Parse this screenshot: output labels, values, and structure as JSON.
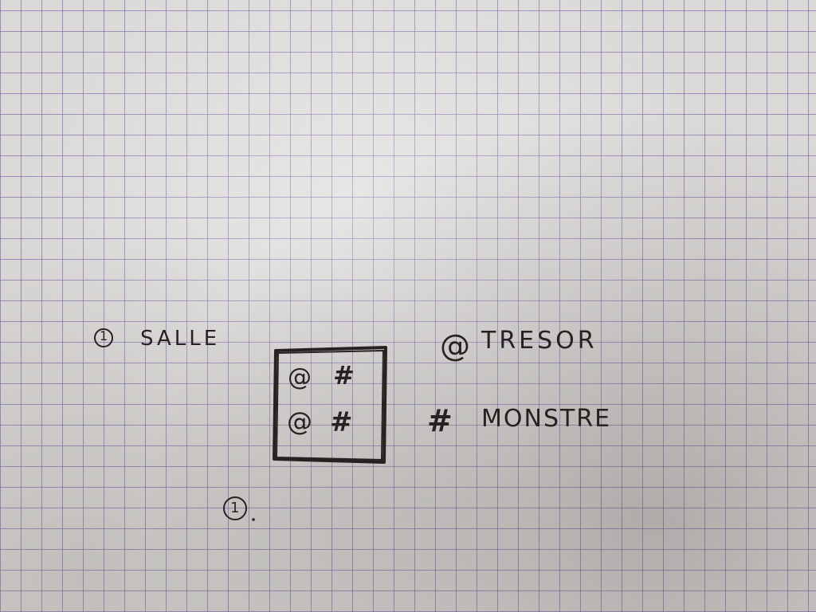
{
  "legend": {
    "start": {
      "marker": "1",
      "label": "SALLE"
    },
    "treasure": {
      "symbol": "@",
      "label": "TRESOR"
    },
    "monster": {
      "symbol": "#",
      "label": "MONSTRE"
    }
  },
  "room": {
    "cells": [
      {
        "symbol": "@"
      },
      {
        "symbol": "#"
      },
      {
        "symbol": "@"
      },
      {
        "symbol": "#"
      }
    ],
    "number_label": "1"
  },
  "colors": {
    "paper": "#dcdad8",
    "grid": "#7664aa",
    "ink": "#262222"
  }
}
